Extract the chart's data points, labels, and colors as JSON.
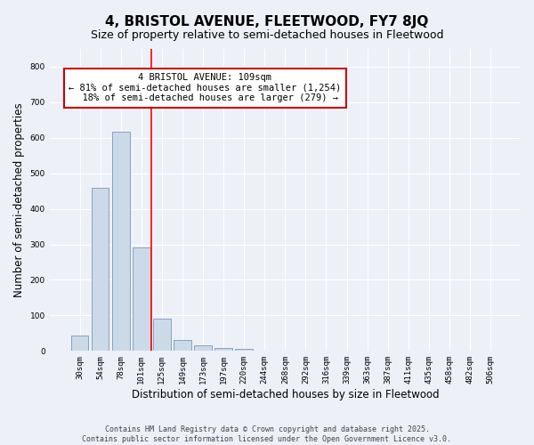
{
  "title": "4, BRISTOL AVENUE, FLEETWOOD, FY7 8JQ",
  "subtitle": "Size of property relative to semi-detached houses in Fleetwood",
  "xlabel": "Distribution of semi-detached houses by size in Fleetwood",
  "ylabel": "Number of semi-detached properties",
  "categories": [
    "30sqm",
    "54sqm",
    "78sqm",
    "101sqm",
    "125sqm",
    "149sqm",
    "173sqm",
    "197sqm",
    "220sqm",
    "244sqm",
    "268sqm",
    "292sqm",
    "316sqm",
    "339sqm",
    "363sqm",
    "387sqm",
    "411sqm",
    "435sqm",
    "458sqm",
    "482sqm",
    "506sqm"
  ],
  "values": [
    44,
    459,
    617,
    292,
    91,
    32,
    15,
    8,
    5,
    0,
    0,
    0,
    0,
    0,
    0,
    0,
    0,
    0,
    0,
    0,
    0
  ],
  "bar_color": "#ccd9e8",
  "bar_edge_color": "#7799bb",
  "background_color": "#eef0f8",
  "grid_color": "#ffffff",
  "red_line_x": 3.5,
  "annotation_text": "4 BRISTOL AVENUE: 109sqm\n← 81% of semi-detached houses are smaller (1,254)\n  18% of semi-detached houses are larger (279) →",
  "annotation_box_color": "#ffffff",
  "annotation_box_edge_color": "#cc0000",
  "ylim": [
    0,
    850
  ],
  "yticks": [
    0,
    100,
    200,
    300,
    400,
    500,
    600,
    700,
    800
  ],
  "footer_text": "Contains HM Land Registry data © Crown copyright and database right 2025.\nContains public sector information licensed under the Open Government Licence v3.0.",
  "title_fontsize": 11,
  "subtitle_fontsize": 9,
  "axis_label_fontsize": 8.5,
  "tick_fontsize": 6.5,
  "annotation_fontsize": 7.5
}
